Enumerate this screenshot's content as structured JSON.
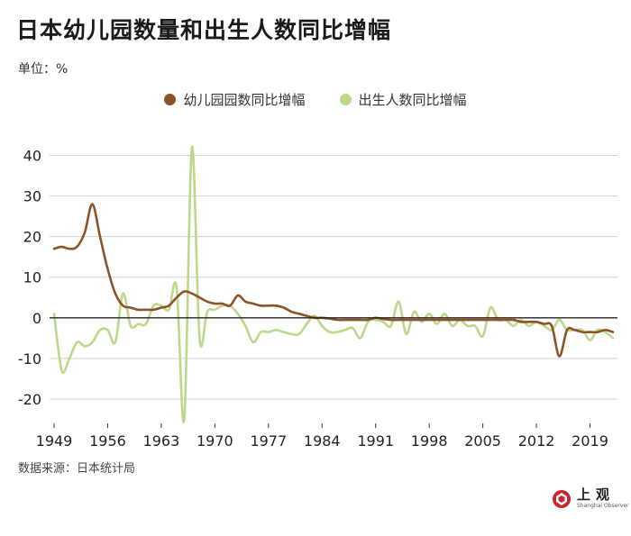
{
  "title": "日本幼儿园数量和出生人数同比增幅",
  "unit": "单位：%",
  "source": "数据来源：日本统计局",
  "logo": {
    "brand": "上观",
    "sub": "Shanghai Observer"
  },
  "colors": {
    "kindergarten": "#8B5327",
    "births": "#BCD98B",
    "grid": "#d0d0d0",
    "zero": "#222222"
  },
  "chart_data": {
    "type": "line",
    "title": "日本幼儿园数量和出生人数同比增幅",
    "ylabel": "单位：%",
    "ylim": [
      -26,
      45
    ],
    "yticks": [
      40,
      30,
      20,
      10,
      0,
      -10,
      -20
    ],
    "xlim": [
      1949,
      2022
    ],
    "xticks": [
      1949,
      1956,
      1963,
      1970,
      1977,
      1984,
      1991,
      1998,
      2005,
      2012,
      2019
    ],
    "grid": true,
    "legend": "top-center",
    "series": [
      {
        "name": "幼儿园园数同比增幅",
        "color": "#8B5327",
        "points": [
          [
            1949,
            17
          ],
          [
            1950,
            17.5
          ],
          [
            1951,
            17
          ],
          [
            1952,
            17.5
          ],
          [
            1953,
            21
          ],
          [
            1954,
            28
          ],
          [
            1955,
            20
          ],
          [
            1956,
            12
          ],
          [
            1957,
            6
          ],
          [
            1958,
            3
          ],
          [
            1959,
            2.5
          ],
          [
            1960,
            2
          ],
          [
            1961,
            2
          ],
          [
            1962,
            2
          ],
          [
            1963,
            2.5
          ],
          [
            1964,
            3
          ],
          [
            1965,
            5
          ],
          [
            1966,
            6.5
          ],
          [
            1967,
            6
          ],
          [
            1968,
            5
          ],
          [
            1969,
            4
          ],
          [
            1970,
            3.5
          ],
          [
            1971,
            3.5
          ],
          [
            1972,
            3
          ],
          [
            1973,
            5.5
          ],
          [
            1974,
            4
          ],
          [
            1975,
            3.5
          ],
          [
            1976,
            3
          ],
          [
            1977,
            3
          ],
          [
            1978,
            3
          ],
          [
            1979,
            2.5
          ],
          [
            1980,
            1.5
          ],
          [
            1981,
            1
          ],
          [
            1982,
            0.5
          ],
          [
            1983,
            0
          ],
          [
            1984,
            0
          ],
          [
            1985,
            -0.2
          ],
          [
            1986,
            -0.5
          ],
          [
            1987,
            -0.5
          ],
          [
            1988,
            -0.5
          ],
          [
            1989,
            -0.5
          ],
          [
            1990,
            -0.5
          ],
          [
            1991,
            0
          ],
          [
            1992,
            -0.3
          ],
          [
            1993,
            -0.5
          ],
          [
            1994,
            -0.5
          ],
          [
            1995,
            -0.5
          ],
          [
            1996,
            -0.5
          ],
          [
            1997,
            -0.5
          ],
          [
            1998,
            -0.5
          ],
          [
            1999,
            -0.5
          ],
          [
            2000,
            -0.5
          ],
          [
            2001,
            -0.5
          ],
          [
            2002,
            -0.5
          ],
          [
            2003,
            -0.5
          ],
          [
            2004,
            -0.5
          ],
          [
            2005,
            -0.5
          ],
          [
            2006,
            -0.5
          ],
          [
            2007,
            -0.5
          ],
          [
            2008,
            -0.5
          ],
          [
            2009,
            -0.5
          ],
          [
            2010,
            -1
          ],
          [
            2011,
            -1
          ],
          [
            2012,
            -1
          ],
          [
            2013,
            -1.5
          ],
          [
            2014,
            -2
          ],
          [
            2015,
            -9.5
          ],
          [
            2016,
            -3
          ],
          [
            2017,
            -3
          ],
          [
            2018,
            -3.5
          ],
          [
            2019,
            -3.5
          ],
          [
            2020,
            -3.5
          ],
          [
            2021,
            -3
          ],
          [
            2022,
            -3.5
          ]
        ]
      },
      {
        "name": "出生人数同比增幅",
        "color": "#BCD98B",
        "points": [
          [
            1949,
            1
          ],
          [
            1950,
            -13
          ],
          [
            1951,
            -10
          ],
          [
            1952,
            -6
          ],
          [
            1953,
            -7
          ],
          [
            1954,
            -6
          ],
          [
            1955,
            -3
          ],
          [
            1956,
            -3
          ],
          [
            1957,
            -6
          ],
          [
            1958,
            6
          ],
          [
            1959,
            -2
          ],
          [
            1960,
            -1.5
          ],
          [
            1961,
            -1.5
          ],
          [
            1962,
            3
          ],
          [
            1963,
            3
          ],
          [
            1964,
            2
          ],
          [
            1965,
            7.5
          ],
          [
            1966,
            -25
          ],
          [
            1967,
            42
          ],
          [
            1968,
            -5
          ],
          [
            1969,
            1.5
          ],
          [
            1970,
            2
          ],
          [
            1971,
            3
          ],
          [
            1972,
            3
          ],
          [
            1973,
            1
          ],
          [
            1974,
            -2
          ],
          [
            1975,
            -6
          ],
          [
            1976,
            -3.5
          ],
          [
            1977,
            -3.5
          ],
          [
            1978,
            -3
          ],
          [
            1979,
            -3.5
          ],
          [
            1980,
            -4
          ],
          [
            1981,
            -4
          ],
          [
            1982,
            -1.5
          ],
          [
            1983,
            0.5
          ],
          [
            1984,
            -2
          ],
          [
            1985,
            -3.5
          ],
          [
            1986,
            -3.5
          ],
          [
            1987,
            -3
          ],
          [
            1988,
            -2.5
          ],
          [
            1989,
            -5
          ],
          [
            1990,
            -1
          ],
          [
            1991,
            -0.5
          ],
          [
            1992,
            -1
          ],
          [
            1993,
            -2
          ],
          [
            1994,
            4
          ],
          [
            1995,
            -4
          ],
          [
            1996,
            1.5
          ],
          [
            1997,
            -1
          ],
          [
            1998,
            1
          ],
          [
            1999,
            -1.5
          ],
          [
            2000,
            1
          ],
          [
            2001,
            -2
          ],
          [
            2002,
            -0.5
          ],
          [
            2003,
            -2
          ],
          [
            2004,
            -2
          ],
          [
            2005,
            -4.5
          ],
          [
            2006,
            2.5
          ],
          [
            2007,
            -0.5
          ],
          [
            2008,
            -0.5
          ],
          [
            2009,
            -2
          ],
          [
            2010,
            -0.5
          ],
          [
            2011,
            -2
          ],
          [
            2012,
            -1
          ],
          [
            2013,
            -2
          ],
          [
            2014,
            -3
          ],
          [
            2015,
            -0.5
          ],
          [
            2016,
            -3
          ],
          [
            2017,
            -3
          ],
          [
            2018,
            -3
          ],
          [
            2019,
            -5.5
          ],
          [
            2020,
            -3
          ],
          [
            2021,
            -3.5
          ],
          [
            2022,
            -5
          ]
        ]
      }
    ]
  }
}
